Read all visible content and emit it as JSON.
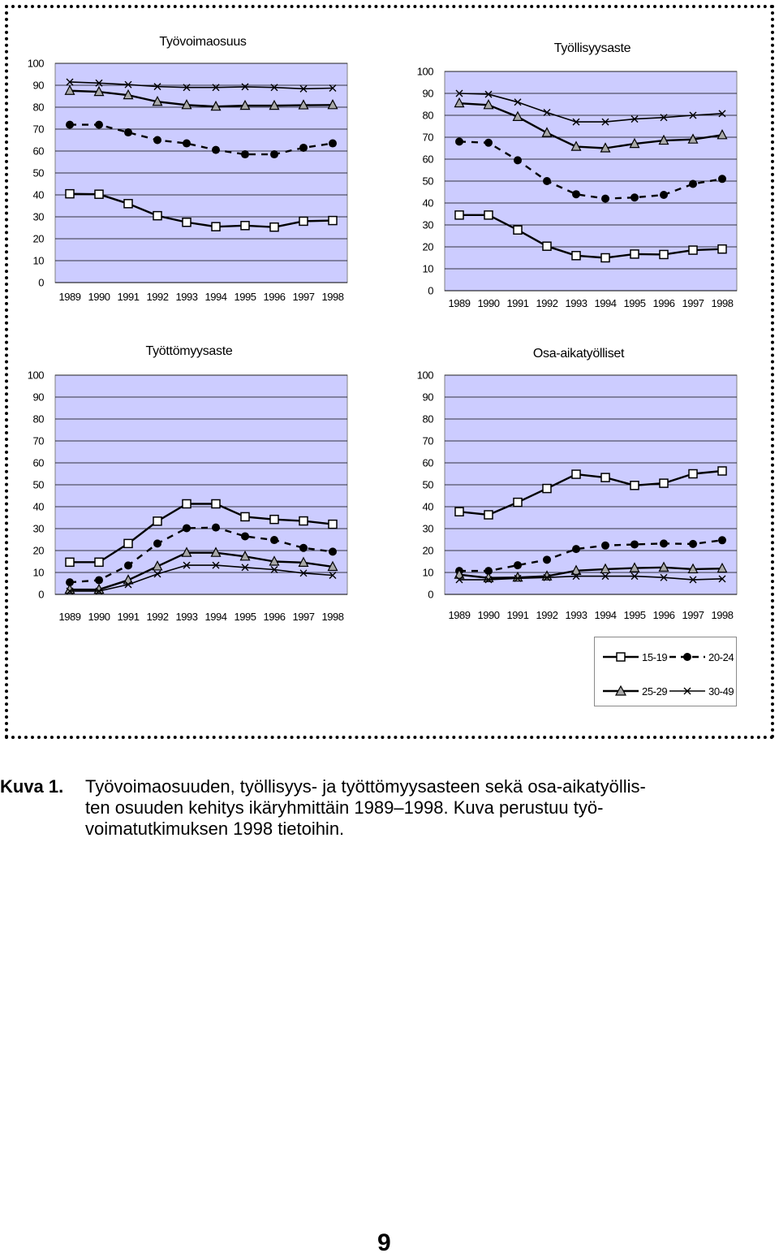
{
  "chart_data": [
    {
      "type": "line",
      "title": "Työvoimaosuus",
      "categories": [
        "1989",
        "1990",
        "1991",
        "1992",
        "1993",
        "1994",
        "1995",
        "1996",
        "1997",
        "1998"
      ],
      "ylim": [
        0,
        100
      ],
      "yticks": [
        0,
        10,
        20,
        30,
        40,
        50,
        60,
        70,
        80,
        90,
        100
      ],
      "grid": true,
      "series": [
        {
          "name": "15-19",
          "values": [
            40.5,
            40.3,
            36,
            30.5,
            27.5,
            25.5,
            26,
            25.3,
            28,
            28.3
          ]
        },
        {
          "name": "20-24",
          "values": [
            72,
            72,
            68.5,
            65,
            63.5,
            60.5,
            58.5,
            58.5,
            61.5,
            63.5
          ]
        },
        {
          "name": "25-29",
          "values": [
            87.5,
            87,
            85.5,
            82.5,
            81,
            80.3,
            80.7,
            80.7,
            80.9,
            81
          ]
        },
        {
          "name": "30-49",
          "values": [
            91.5,
            91,
            90.3,
            89.4,
            89,
            89,
            89.3,
            89,
            88.4,
            88.7
          ]
        }
      ]
    },
    {
      "type": "line",
      "title": "Työllisyysaste",
      "categories": [
        "1989",
        "1990",
        "1991",
        "1992",
        "1993",
        "1994",
        "1995",
        "1996",
        "1997",
        "1998"
      ],
      "ylim": [
        0,
        100
      ],
      "yticks": [
        0,
        10,
        20,
        30,
        40,
        50,
        60,
        70,
        80,
        90,
        100
      ],
      "grid": true,
      "series": [
        {
          "name": "15-19",
          "values": [
            34.5,
            34.5,
            27.7,
            20.3,
            16,
            15,
            16.7,
            16.5,
            18.5,
            19
          ]
        },
        {
          "name": "20-24",
          "values": [
            68,
            67.5,
            59.5,
            50,
            44,
            42,
            42.5,
            43.7,
            48.7,
            51
          ]
        },
        {
          "name": "25-29",
          "values": [
            85.5,
            84.7,
            79.3,
            72,
            65.7,
            65,
            67,
            68.5,
            69,
            71
          ]
        },
        {
          "name": "30-49",
          "values": [
            90,
            89.6,
            86,
            81.3,
            77,
            77,
            78.3,
            79,
            80,
            80.8
          ]
        }
      ]
    },
    {
      "type": "line",
      "title": "Työttömyysaste",
      "categories": [
        "1989",
        "1990",
        "1991",
        "1992",
        "1993",
        "1994",
        "1995",
        "1996",
        "1997",
        "1998"
      ],
      "ylim": [
        0,
        100
      ],
      "yticks": [
        0,
        10,
        20,
        30,
        40,
        50,
        60,
        70,
        80,
        90,
        100
      ],
      "grid": true,
      "series": [
        {
          "name": "15-19",
          "values": [
            14.7,
            14.7,
            23.2,
            33.4,
            41.3,
            41.3,
            35.4,
            34.2,
            33.5,
            32
          ]
        },
        {
          "name": "20-24",
          "values": [
            5.5,
            6.5,
            13.2,
            23.2,
            30.2,
            30.5,
            26.5,
            24.8,
            21.2,
            19.5
          ]
        },
        {
          "name": "25-29",
          "values": [
            2.2,
            2.2,
            6.5,
            12.8,
            19,
            19,
            17.3,
            15,
            14.5,
            12.6
          ]
        },
        {
          "name": "30-49",
          "values": [
            1.5,
            1.5,
            4.5,
            9.3,
            13.3,
            13.3,
            12.3,
            11.3,
            9.7,
            8.7
          ]
        }
      ]
    },
    {
      "type": "line",
      "title": "Osa-aikatyölliset",
      "categories": [
        "1989",
        "1990",
        "1991",
        "1992",
        "1993",
        "1994",
        "1995",
        "1996",
        "1997",
        "1998"
      ],
      "ylim": [
        0,
        100
      ],
      "yticks": [
        0,
        10,
        20,
        30,
        40,
        50,
        60,
        70,
        80,
        90,
        100
      ],
      "grid": true,
      "series": [
        {
          "name": "15-19",
          "values": [
            37.7,
            36.3,
            42,
            48.3,
            54.8,
            53.3,
            49.7,
            50.7,
            55,
            56.3
          ]
        },
        {
          "name": "20-24",
          "values": [
            10.7,
            10.7,
            13.3,
            15.8,
            20.7,
            22.3,
            22.8,
            23.2,
            23,
            24.7
          ]
        },
        {
          "name": "25-29",
          "values": [
            9,
            7.5,
            7.7,
            8.3,
            10.8,
            11.5,
            12,
            12.3,
            11.5,
            11.8
          ]
        },
        {
          "name": "30-49",
          "values": [
            6.7,
            6.7,
            7.3,
            7.7,
            8.3,
            8.3,
            8.3,
            7.7,
            6.7,
            7.1
          ]
        }
      ]
    }
  ],
  "legend": {
    "entries": [
      {
        "label": "15-19",
        "marker": "square",
        "line": "solid"
      },
      {
        "label": "20-24",
        "marker": "circle",
        "line": "dashed"
      },
      {
        "label": "25-29",
        "marker": "triangle",
        "line": "solid"
      },
      {
        "label": "30-49",
        "marker": "x",
        "line": "solid"
      }
    ]
  },
  "colors": {
    "plot_background": "#ccccff",
    "gridline": "#000000",
    "series_line": "#000000",
    "open_marker_fill": "#ffffff"
  },
  "caption": {
    "label": "Kuva 1.",
    "lines": [
      "Työvoimaosuuden, työllisyys- ja työttömyysasteen sekä osa-aikatyöllis-",
      "ten osuuden kehitys ikäryhmittäin 1989–1998. Kuva perustuu työ-",
      "voimatutkimuksen 1998 tietoihin."
    ]
  },
  "page_number": "9"
}
